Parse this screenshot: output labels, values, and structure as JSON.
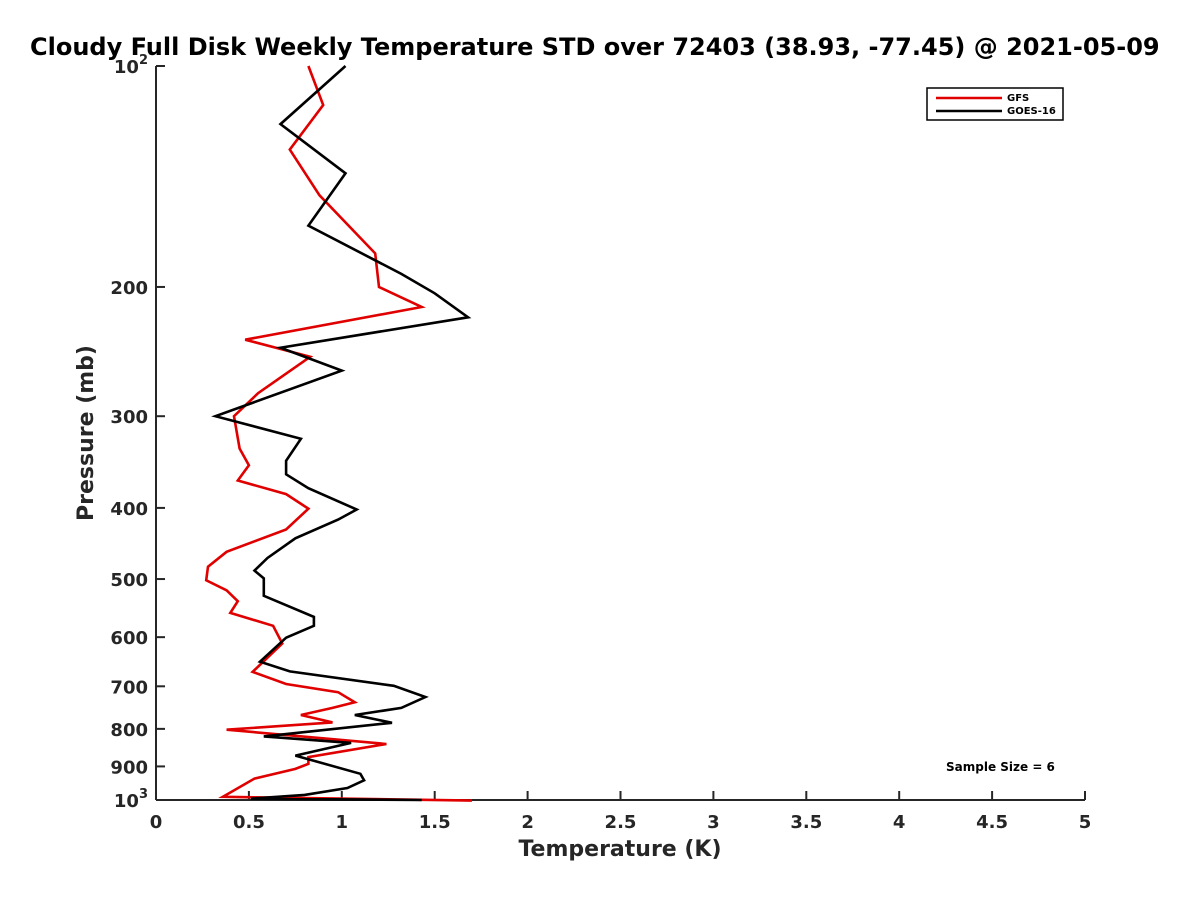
{
  "chart_data": {
    "type": "line",
    "title": "Cloudy Full Disk Weekly Temperature STD over 72403 (38.93, -77.45) @ 2021-05-09",
    "xlabel": "Temperature (K)",
    "ylabel": "Pressure (mb)",
    "xlim": [
      0,
      5
    ],
    "ylim": [
      100,
      1000
    ],
    "y_scale": "log",
    "y_reversed": true,
    "grid": false,
    "legend_position": "top-right",
    "x_ticks": [
      0,
      0.5,
      1,
      1.5,
      2,
      2.5,
      3,
      3.5,
      4,
      4.5,
      5
    ],
    "x_tick_labels": [
      "0",
      "0.5",
      "1",
      "1.5",
      "2",
      "2.5",
      "3",
      "3.5",
      "4",
      "4.5",
      "5"
    ],
    "y_ticks": [
      100,
      200,
      300,
      400,
      500,
      600,
      700,
      800,
      900,
      1000
    ],
    "y_tick_labels": [
      {
        "base": "10",
        "exp": "2"
      },
      {
        "base": "200",
        "exp": ""
      },
      {
        "base": "300",
        "exp": ""
      },
      {
        "base": "400",
        "exp": ""
      },
      {
        "base": "500",
        "exp": ""
      },
      {
        "base": "600",
        "exp": ""
      },
      {
        "base": "700",
        "exp": ""
      },
      {
        "base": "800",
        "exp": ""
      },
      {
        "base": "900",
        "exp": ""
      },
      {
        "base": "10",
        "exp": "3"
      }
    ],
    "series": [
      {
        "name": "GFS",
        "color": "#e00000",
        "points": [
          [
            0.82,
            100
          ],
          [
            0.9,
            113
          ],
          [
            0.72,
            130
          ],
          [
            0.88,
            150
          ],
          [
            1.18,
            180
          ],
          [
            1.2,
            200
          ],
          [
            1.43,
            213
          ],
          [
            0.48,
            236
          ],
          [
            0.83,
            249
          ],
          [
            0.55,
            279
          ],
          [
            0.42,
            300
          ],
          [
            0.45,
            332
          ],
          [
            0.5,
            350
          ],
          [
            0.44,
            367
          ],
          [
            0.7,
            383
          ],
          [
            0.82,
            401
          ],
          [
            0.7,
            428
          ],
          [
            0.38,
            459
          ],
          [
            0.28,
            481
          ],
          [
            0.27,
            502
          ],
          [
            0.38,
            518
          ],
          [
            0.44,
            536
          ],
          [
            0.4,
            556
          ],
          [
            0.63,
            579
          ],
          [
            0.68,
            612
          ],
          [
            0.52,
            669
          ],
          [
            0.7,
            695
          ],
          [
            0.98,
            713
          ],
          [
            1.07,
            736
          ],
          [
            0.95,
            749
          ],
          [
            0.78,
            766
          ],
          [
            0.95,
            784
          ],
          [
            0.38,
            802
          ],
          [
            1.24,
            839
          ],
          [
            0.82,
            874
          ],
          [
            0.82,
            893
          ],
          [
            0.75,
            907
          ],
          [
            0.53,
            935
          ],
          [
            0.36,
            990
          ],
          [
            1.7,
            1002
          ]
        ]
      },
      {
        "name": "GOES-16",
        "color": "#000000",
        "points": [
          [
            1.02,
            100
          ],
          [
            0.67,
            120
          ],
          [
            1.02,
            140
          ],
          [
            0.82,
            165
          ],
          [
            1.32,
            192
          ],
          [
            1.5,
            204
          ],
          [
            1.68,
            220
          ],
          [
            0.67,
            242
          ],
          [
            1.0,
            260
          ],
          [
            0.32,
            300
          ],
          [
            0.78,
            322
          ],
          [
            0.7,
            345
          ],
          [
            0.7,
            360
          ],
          [
            0.82,
            376
          ],
          [
            1.08,
            402
          ],
          [
            0.98,
            415
          ],
          [
            0.75,
            440
          ],
          [
            0.6,
            468
          ],
          [
            0.53,
            487
          ],
          [
            0.58,
            499
          ],
          [
            0.58,
            527
          ],
          [
            0.85,
            563
          ],
          [
            0.85,
            579
          ],
          [
            0.7,
            601
          ],
          [
            0.56,
            648
          ],
          [
            0.72,
            668
          ],
          [
            1.28,
            699
          ],
          [
            1.45,
            724
          ],
          [
            1.32,
            749
          ],
          [
            1.07,
            766
          ],
          [
            1.27,
            785
          ],
          [
            0.58,
            819
          ],
          [
            1.05,
            836
          ],
          [
            0.75,
            870
          ],
          [
            1.1,
            921
          ],
          [
            1.12,
            940
          ],
          [
            1.03,
            963
          ],
          [
            0.8,
            984
          ],
          [
            0.51,
            996
          ],
          [
            1.43,
            1000
          ]
        ]
      }
    ],
    "annotations": [
      "Sample Size = 6"
    ]
  }
}
